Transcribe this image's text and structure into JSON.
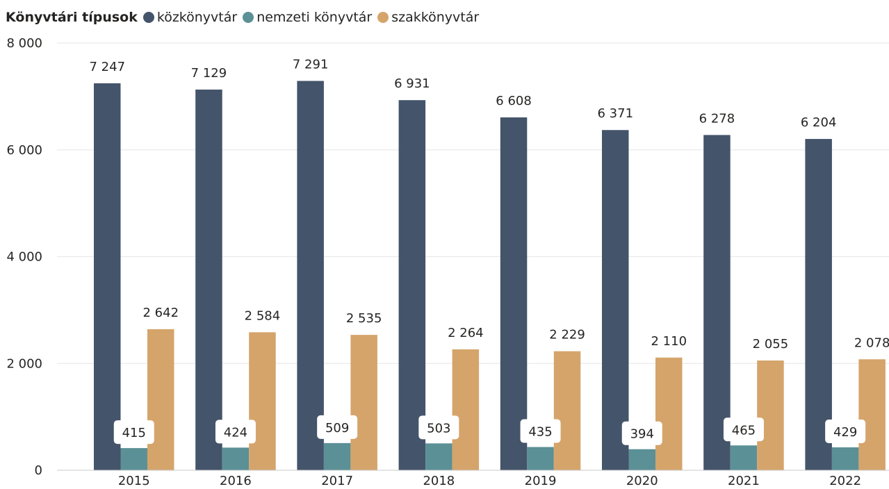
{
  "chart_data": {
    "type": "bar",
    "legend_title": "Könyvtári típusok",
    "legend_position": "top-left",
    "categories": [
      "2015",
      "2016",
      "2017",
      "2018",
      "2019",
      "2020",
      "2021",
      "2022"
    ],
    "series": [
      {
        "name": "közkönyvtár",
        "color": "#44546a",
        "values": [
          7247,
          7129,
          7291,
          6931,
          6608,
          6371,
          6278,
          6204
        ]
      },
      {
        "name": "nemzeti könyvtár",
        "color": "#5b9096",
        "values": [
          415,
          424,
          509,
          503,
          435,
          394,
          465,
          429
        ]
      },
      {
        "name": "szakkönyvtár",
        "color": "#d5a46b",
        "values": [
          2642,
          2584,
          2535,
          2264,
          2229,
          2110,
          2055,
          2078
        ]
      }
    ],
    "value_labels": [
      [
        "7 247",
        "7 129",
        "7 291",
        "6 931",
        "6 608",
        "6 371",
        "6 278",
        "6 204"
      ],
      [
        "415",
        "424",
        "509",
        "503",
        "435",
        "394",
        "465",
        "429"
      ],
      [
        "2 642",
        "2 584",
        "2 535",
        "2 264",
        "2 229",
        "2 110",
        "2 055",
        "2 078"
      ]
    ],
    "y_ticks": [
      0,
      2000,
      4000,
      6000,
      8000
    ],
    "y_tick_labels": [
      "0",
      "2 000",
      "4 000",
      "6 000",
      "8 000"
    ],
    "ylim": [
      0,
      8000
    ],
    "grid": true
  }
}
